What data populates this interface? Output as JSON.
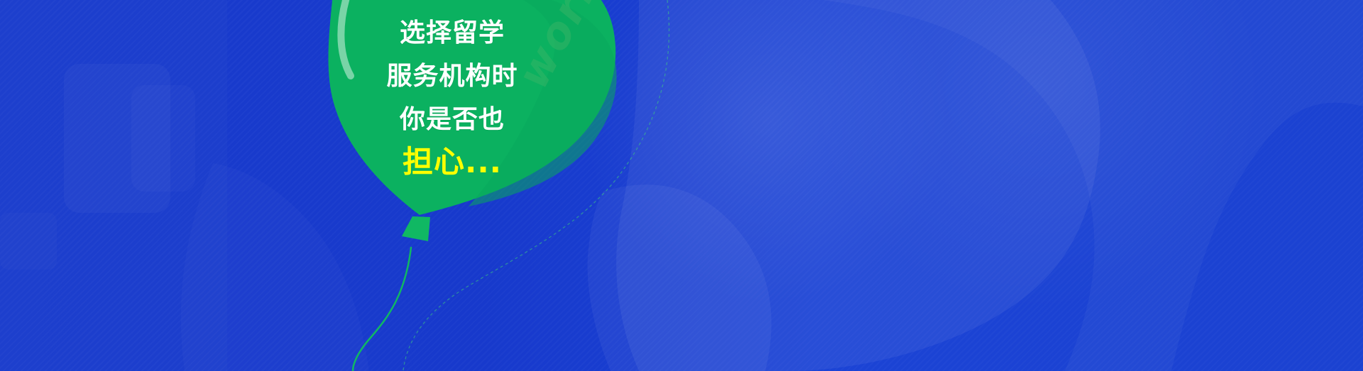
{
  "banner": {
    "headline_lines": [
      "选择留学",
      "服务机构时",
      "你是否也"
    ],
    "headline_highlight": "担心...",
    "balloon_script": "worried"
  }
}
